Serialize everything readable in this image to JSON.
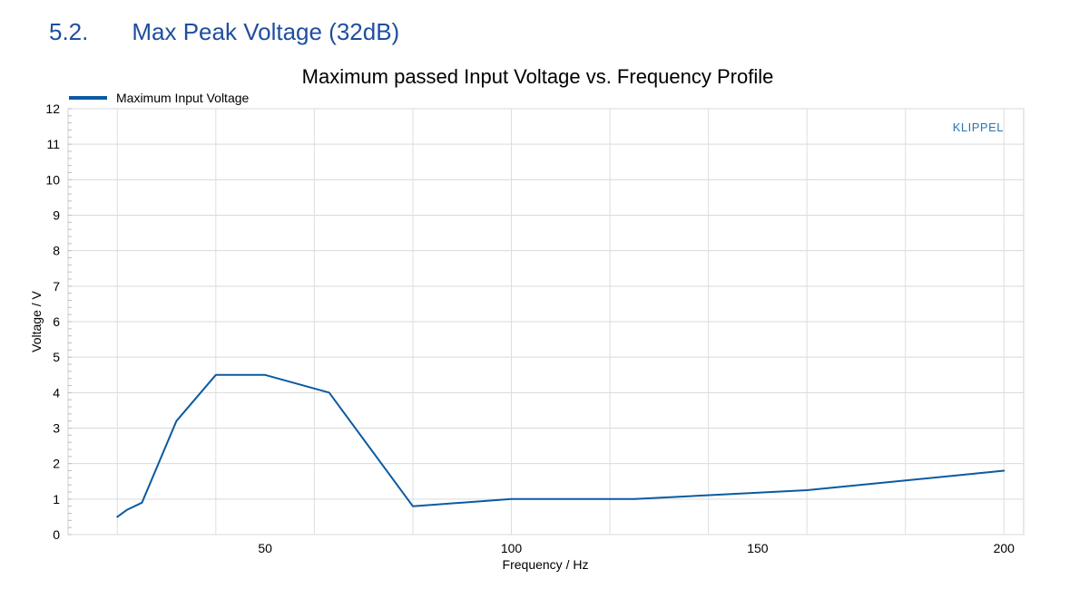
{
  "section": {
    "number": "5.2.",
    "title": "Max Peak Voltage (32dB)"
  },
  "chart_data": {
    "type": "line",
    "title": "Maximum passed Input Voltage vs. Frequency Profile",
    "xlabel": "Frequency / Hz",
    "ylabel": "Voltage / V",
    "xlim": [
      10,
      204
    ],
    "ylim": [
      0,
      12
    ],
    "x_ticks": [
      50,
      100,
      150,
      200
    ],
    "y_ticks": [
      0,
      1,
      2,
      3,
      4,
      5,
      6,
      7,
      8,
      9,
      10,
      11,
      12
    ],
    "grid": true,
    "legend_position": "top-left",
    "brand_label": "KLIPPEL",
    "line_color": "#0b5aa2",
    "series": [
      {
        "name": "Maximum Input Voltage",
        "x": [
          20,
          22,
          25,
          32,
          40,
          50,
          63,
          80,
          100,
          125,
          160,
          200
        ],
        "values": [
          0.5,
          0.7,
          0.9,
          3.2,
          4.5,
          4.5,
          4.0,
          0.8,
          1.0,
          1.0,
          1.25,
          1.8
        ]
      }
    ]
  }
}
